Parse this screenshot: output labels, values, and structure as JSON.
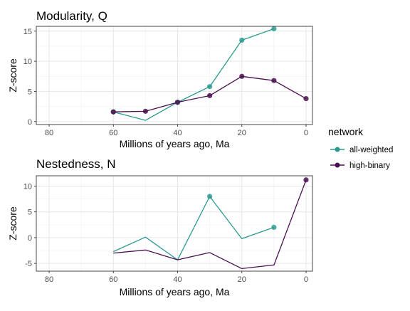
{
  "chart_data": [
    {
      "type": "line",
      "title": "Modularity, Q",
      "xlabel": "Millions of years ago, Ma",
      "ylabel": "Z-score",
      "x_reversed": true,
      "xlim": [
        84,
        -2
      ],
      "ylim": [
        -0.5,
        15.8
      ],
      "x_ticks": [
        80,
        60,
        40,
        20,
        0
      ],
      "y_ticks": [
        0,
        5,
        10,
        15
      ],
      "grid": true,
      "series": [
        {
          "name": "all-weighted",
          "color": "#2a9a90",
          "points": [
            {
              "x": 60,
              "y": 1.6,
              "marker": true
            },
            {
              "x": 50,
              "y": 0.2,
              "marker": false
            },
            {
              "x": 40,
              "y": 3.2,
              "marker": true
            },
            {
              "x": 30,
              "y": 5.8,
              "marker": true
            },
            {
              "x": 20,
              "y": 13.5,
              "marker": true
            },
            {
              "x": 10,
              "y": 15.4,
              "marker": true
            }
          ]
        },
        {
          "name": "high-binary",
          "color": "#4a0f4f",
          "points": [
            {
              "x": 60,
              "y": 1.6,
              "marker": true
            },
            {
              "x": 50,
              "y": 1.7,
              "marker": true
            },
            {
              "x": 40,
              "y": 3.2,
              "marker": true
            },
            {
              "x": 30,
              "y": 4.3,
              "marker": true
            },
            {
              "x": 20,
              "y": 7.5,
              "marker": true
            },
            {
              "x": 10,
              "y": 6.8,
              "marker": true
            },
            {
              "x": 0,
              "y": 3.8,
              "marker": true
            }
          ]
        }
      ]
    },
    {
      "type": "line",
      "title": "Nestedness, N",
      "xlabel": "Millions of years ago, Ma",
      "ylabel": "Z-score",
      "x_reversed": true,
      "xlim": [
        84,
        -2
      ],
      "ylim": [
        -6.5,
        12.0
      ],
      "x_ticks": [
        80,
        60,
        40,
        20,
        0
      ],
      "y_ticks": [
        -5,
        0,
        5,
        10
      ],
      "grid": true,
      "series": [
        {
          "name": "all-weighted",
          "color": "#2a9a90",
          "points": [
            {
              "x": 60,
              "y": -2.7,
              "marker": false
            },
            {
              "x": 50,
              "y": 0.1,
              "marker": false
            },
            {
              "x": 40,
              "y": -4.3,
              "marker": false
            },
            {
              "x": 30,
              "y": 8.0,
              "marker": true
            },
            {
              "x": 20,
              "y": -0.2,
              "marker": false
            },
            {
              "x": 10,
              "y": 2.0,
              "marker": true
            }
          ]
        },
        {
          "name": "high-binary",
          "color": "#4a0f4f",
          "points": [
            {
              "x": 60,
              "y": -3.0,
              "marker": false
            },
            {
              "x": 50,
              "y": -2.4,
              "marker": false
            },
            {
              "x": 40,
              "y": -4.3,
              "marker": false
            },
            {
              "x": 30,
              "y": -2.9,
              "marker": false
            },
            {
              "x": 20,
              "y": -6.0,
              "marker": false
            },
            {
              "x": 10,
              "y": -5.3,
              "marker": false
            },
            {
              "x": 0,
              "y": 11.2,
              "marker": true
            }
          ]
        }
      ]
    }
  ],
  "legend": {
    "title": "network",
    "placement": "right",
    "items": [
      {
        "label": "all-weighted",
        "color": "#2a9a90"
      },
      {
        "label": "high-binary",
        "color": "#4a0f4f"
      }
    ]
  }
}
